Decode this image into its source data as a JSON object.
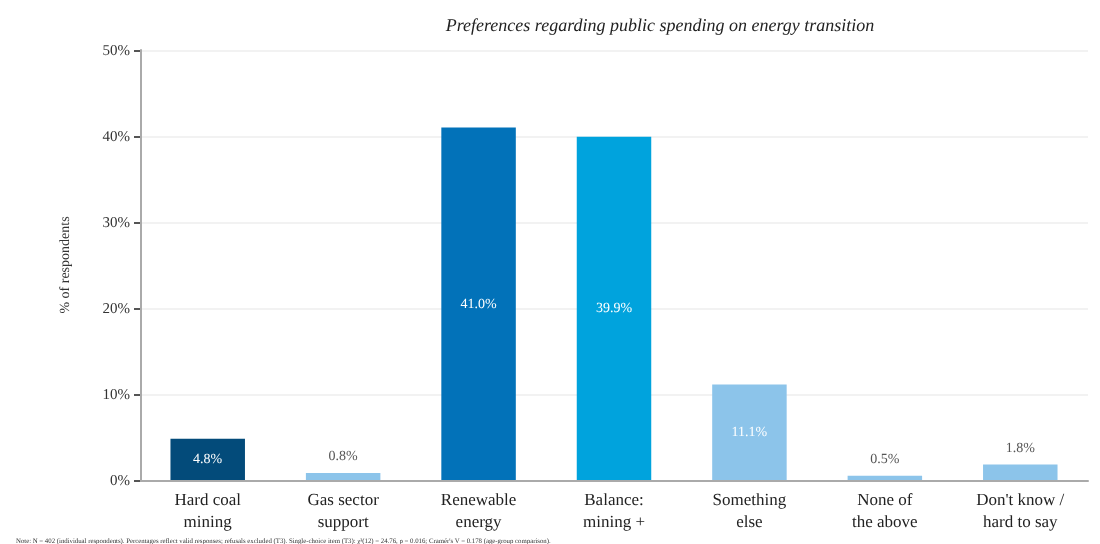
{
  "chart_data": {
    "type": "bar",
    "title": "Preferences regarding public spending on energy transition",
    "ylabel": "% of respondents",
    "categories": [
      "Hard coal\nmining",
      "Gas sector\nsupport",
      "Renewable\nenergy",
      "Balance:\nmining +",
      "Something\nelse",
      "None of\nthe above",
      "Don't know /\nhard to say"
    ],
    "values": [
      4.8,
      0.8,
      41.0,
      39.9,
      11.1,
      0.5,
      1.8
    ],
    "value_labels": [
      "4.8%",
      "0.8%",
      "41.0%",
      "39.9%",
      "11.1%",
      "0.5%",
      "1.8%"
    ],
    "colors": [
      "#034b7a",
      "#8cc4ea",
      "#0272b9",
      "#00a3dd",
      "#8cc4ea",
      "#8cc4ea",
      "#8cc4ea"
    ],
    "ylim": [
      0,
      50
    ],
    "yticks": [
      {
        "value": 0,
        "label": "0%"
      },
      {
        "value": 10,
        "label": "10%"
      },
      {
        "value": 20,
        "label": "20%"
      },
      {
        "value": 30,
        "label": "30%"
      },
      {
        "value": 40,
        "label": "40%"
      },
      {
        "value": 50,
        "label": "50%"
      }
    ],
    "grid": "y",
    "annotations": [
      "Note: N = 402 (individual respondents). Percentages reflect valid responses; refusals excluded (T3). Single-choice item (T3): χ²(12) = 24.76, p = 0.016; Cramér's V = 0.178 (age-group comparison)."
    ]
  }
}
